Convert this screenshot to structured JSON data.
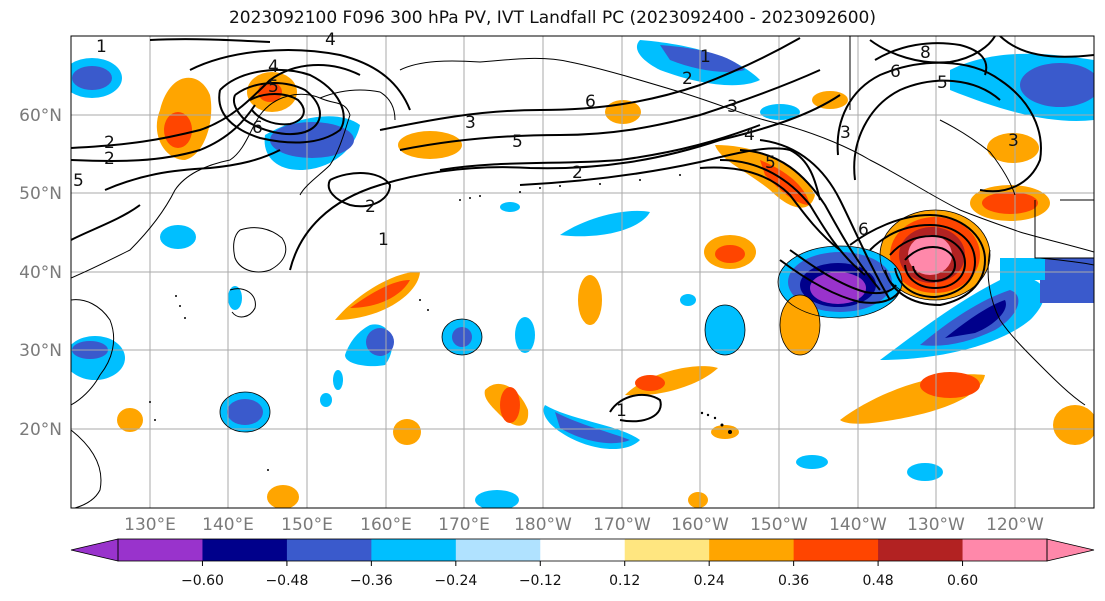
{
  "title": "2023092100 F096 300 hPa PV, IVT Landfall PC (2023092400 - 2023092600)",
  "lat_labels": [
    "60°N",
    "50°N",
    "40°N",
    "30°N",
    "20°N"
  ],
  "lon_labels": [
    "130°E",
    "140°E",
    "150°E",
    "160°E",
    "170°E",
    "180°W",
    "170°W",
    "160°W",
    "150°W",
    "140°W",
    "130°W",
    "120°W"
  ],
  "colorbar": {
    "colors": [
      "#9933cc",
      "#00008b",
      "#3a5acc",
      "#00bfff",
      "#b0e2ff",
      "#ffffff",
      "#ffe680",
      "#ffa500",
      "#ff4500",
      "#b22222",
      "#ff88aa"
    ],
    "tick_labels": [
      "−0.60",
      "−0.48",
      "−0.36",
      "−0.24",
      "−0.12",
      "0.12",
      "0.24",
      "0.36",
      "0.48",
      "0.60"
    ]
  },
  "contour_labels": [
    "1",
    "2",
    "3",
    "4",
    "5",
    "6",
    "8",
    "1",
    "2",
    "3",
    "5",
    "6",
    "6",
    "3",
    "3",
    "1",
    "2",
    "1",
    "5",
    "3",
    "2",
    "1",
    "5"
  ]
}
